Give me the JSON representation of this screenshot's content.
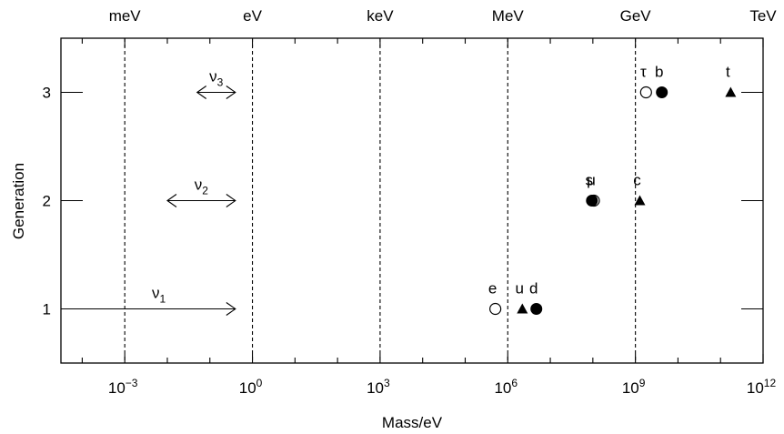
{
  "chart_data": {
    "type": "scatter",
    "x_scale": "log10",
    "xlim_exponents": [
      -4.5,
      12
    ],
    "ylim": [
      0.5,
      3.5
    ],
    "xlabel": "Mass/eV",
    "ylabel": "Generation",
    "x_ticks": [
      {
        "mantissa": "10",
        "exponent": "−3",
        "exp_value": -3
      },
      {
        "mantissa": "10",
        "exponent": "0",
        "exp_value": 0
      },
      {
        "mantissa": "10",
        "exponent": "3",
        "exp_value": 3
      },
      {
        "mantissa": "10",
        "exponent": "6",
        "exp_value": 6
      },
      {
        "mantissa": "10",
        "exponent": "9",
        "exp_value": 9
      },
      {
        "mantissa": "10",
        "exponent": "12",
        "exp_value": 12
      }
    ],
    "minor_x_ticks": [
      -4,
      -2,
      -1,
      1,
      2,
      4,
      5,
      7,
      8,
      10,
      11
    ],
    "y_ticks": [
      {
        "label": "1",
        "value": 1
      },
      {
        "label": "2",
        "value": 2
      },
      {
        "label": "3",
        "value": 3
      }
    ],
    "unit_lines": [
      {
        "label": "meV",
        "exp_value": -3
      },
      {
        "label": "eV",
        "exp_value": 0
      },
      {
        "label": "keV",
        "exp_value": 3
      },
      {
        "label": "MeV",
        "exp_value": 6
      },
      {
        "label": "GeV",
        "exp_value": 9
      },
      {
        "label": "TeV",
        "exp_value": 12
      }
    ],
    "neutrinos": [
      {
        "label": "ν",
        "sub": "1",
        "generation": 1,
        "x_from_exp": -4.5,
        "x_to_exp": -0.4,
        "head_left": false
      },
      {
        "label": "ν",
        "sub": "2",
        "generation": 2,
        "x_from_exp": -2.0,
        "x_to_exp": -0.4,
        "head_left": true
      },
      {
        "label": "ν",
        "sub": "3",
        "generation": 3,
        "x_from_exp": -1.3,
        "x_to_exp": -0.4,
        "head_left": true
      }
    ],
    "particles": [
      {
        "label": "e",
        "generation": 1,
        "mass_ev": 511000,
        "marker": "open-circle"
      },
      {
        "label": "u",
        "generation": 1,
        "mass_ev": 2200000,
        "marker": "triangle"
      },
      {
        "label": "d",
        "generation": 1,
        "mass_ev": 4700000,
        "marker": "filled-circle"
      },
      {
        "label": "s",
        "generation": 2,
        "mass_ev": 95000000,
        "marker": "filled-circle"
      },
      {
        "label": "μ",
        "generation": 2,
        "mass_ev": 105700000,
        "marker": "open-circle"
      },
      {
        "label": "c",
        "generation": 2,
        "mass_ev": 1270000000,
        "marker": "triangle"
      },
      {
        "label": "τ",
        "generation": 3,
        "mass_ev": 1777000000,
        "marker": "open-circle"
      },
      {
        "label": "b",
        "generation": 3,
        "mass_ev": 4180000000,
        "marker": "filled-circle"
      },
      {
        "label": "t",
        "generation": 3,
        "mass_ev": 173000000000,
        "marker": "triangle"
      }
    ]
  }
}
